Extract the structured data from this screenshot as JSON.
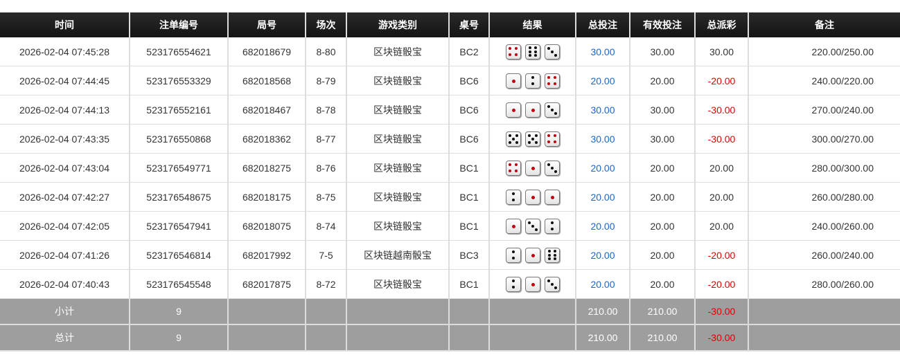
{
  "columns": [
    "时间",
    "注单编号",
    "局号",
    "场次",
    "游戏类别",
    "桌号",
    "结果",
    "总投注",
    "有效投注",
    "总派彩",
    "备注"
  ],
  "rows": [
    {
      "time": "2026-02-04 07:45:28",
      "bet_id": "523176554621",
      "round": "682018679",
      "game_no": "8-80",
      "game_type": "区块链骰宝",
      "table": "BC2",
      "dice": [
        4,
        6,
        3
      ],
      "total_bet": "30.00",
      "valid_bet": "30.00",
      "payout": "30.00",
      "payout_negative": false,
      "note": "220.00/250.00"
    },
    {
      "time": "2026-02-04 07:44:45",
      "bet_id": "523176553329",
      "round": "682018568",
      "game_no": "8-79",
      "game_type": "区块链骰宝",
      "table": "BC6",
      "dice": [
        1,
        2,
        4
      ],
      "total_bet": "20.00",
      "valid_bet": "20.00",
      "payout": "-20.00",
      "payout_negative": true,
      "note": "240.00/220.00"
    },
    {
      "time": "2026-02-04 07:44:13",
      "bet_id": "523176552161",
      "round": "682018467",
      "game_no": "8-78",
      "game_type": "区块链骰宝",
      "table": "BC6",
      "dice": [
        1,
        1,
        3
      ],
      "total_bet": "30.00",
      "valid_bet": "30.00",
      "payout": "-30.00",
      "payout_negative": true,
      "note": "270.00/240.00"
    },
    {
      "time": "2026-02-04 07:43:35",
      "bet_id": "523176550868",
      "round": "682018362",
      "game_no": "8-77",
      "game_type": "区块链骰宝",
      "table": "BC6",
      "dice": [
        5,
        5,
        4
      ],
      "total_bet": "30.00",
      "valid_bet": "30.00",
      "payout": "-30.00",
      "payout_negative": true,
      "note": "300.00/270.00"
    },
    {
      "time": "2026-02-04 07:43:04",
      "bet_id": "523176549771",
      "round": "682018275",
      "game_no": "8-76",
      "game_type": "区块链骰宝",
      "table": "BC1",
      "dice": [
        4,
        1,
        3
      ],
      "total_bet": "20.00",
      "valid_bet": "20.00",
      "payout": "20.00",
      "payout_negative": false,
      "note": "280.00/300.00"
    },
    {
      "time": "2026-02-04 07:42:27",
      "bet_id": "523176548675",
      "round": "682018175",
      "game_no": "8-75",
      "game_type": "区块链骰宝",
      "table": "BC1",
      "dice": [
        2,
        1,
        1
      ],
      "total_bet": "20.00",
      "valid_bet": "20.00",
      "payout": "20.00",
      "payout_negative": false,
      "note": "260.00/280.00"
    },
    {
      "time": "2026-02-04 07:42:05",
      "bet_id": "523176547941",
      "round": "682018075",
      "game_no": "8-74",
      "game_type": "区块链骰宝",
      "table": "BC1",
      "dice": [
        1,
        3,
        2
      ],
      "total_bet": "20.00",
      "valid_bet": "20.00",
      "payout": "20.00",
      "payout_negative": false,
      "note": "240.00/260.00"
    },
    {
      "time": "2026-02-04 07:41:26",
      "bet_id": "523176546814",
      "round": "682017992",
      "game_no": "7-5",
      "game_type": "区块链越南骰宝",
      "table": "BC3",
      "dice": [
        2,
        1,
        6
      ],
      "total_bet": "20.00",
      "valid_bet": "20.00",
      "payout": "-20.00",
      "payout_negative": true,
      "note": "260.00/240.00"
    },
    {
      "time": "2026-02-04 07:40:43",
      "bet_id": "523176545548",
      "round": "682017875",
      "game_no": "8-72",
      "game_type": "区块链骰宝",
      "table": "BC1",
      "dice": [
        2,
        1,
        3
      ],
      "total_bet": "20.00",
      "valid_bet": "20.00",
      "payout": "-20.00",
      "payout_negative": true,
      "note": "280.00/260.00"
    }
  ],
  "subtotal": {
    "label": "小计",
    "count": "9",
    "total_bet": "210.00",
    "valid_bet": "210.00",
    "payout": "-30.00"
  },
  "total": {
    "label": "总计",
    "count": "9",
    "total_bet": "210.00",
    "valid_bet": "210.00",
    "payout": "-30.00"
  },
  "colors": {
    "header_bg": "#1e1e1e",
    "positive_bet": "#1a66cc",
    "negative_payout": "#e00000",
    "summary_bg": "#9e9e9e"
  }
}
